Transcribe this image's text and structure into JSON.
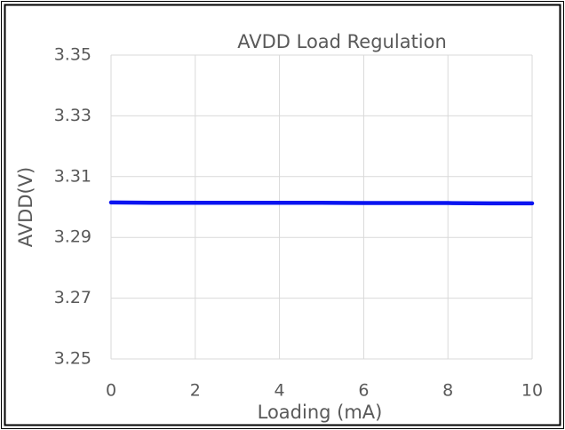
{
  "chart_data": {
    "type": "line",
    "title": "AVDD Load Regulation",
    "x_label": "Loading (mA)",
    "y_label": "AVDD(V)",
    "x": [
      0,
      1,
      2,
      3,
      4,
      5,
      6,
      7,
      8,
      9,
      10
    ],
    "series": [
      {
        "name": "AVDD",
        "color": "#0a14f0",
        "values": [
          3.3015,
          3.3014,
          3.3014,
          3.3014,
          3.3014,
          3.3014,
          3.3013,
          3.3013,
          3.3013,
          3.3012,
          3.3012
        ]
      }
    ],
    "xlim": [
      0,
      10
    ],
    "xticks": [
      0,
      2,
      4,
      6,
      8,
      10
    ],
    "ylim": [
      3.25,
      3.35
    ],
    "yticks": [
      3.25,
      3.27,
      3.29,
      3.31,
      3.33,
      3.35
    ],
    "grid": true
  }
}
